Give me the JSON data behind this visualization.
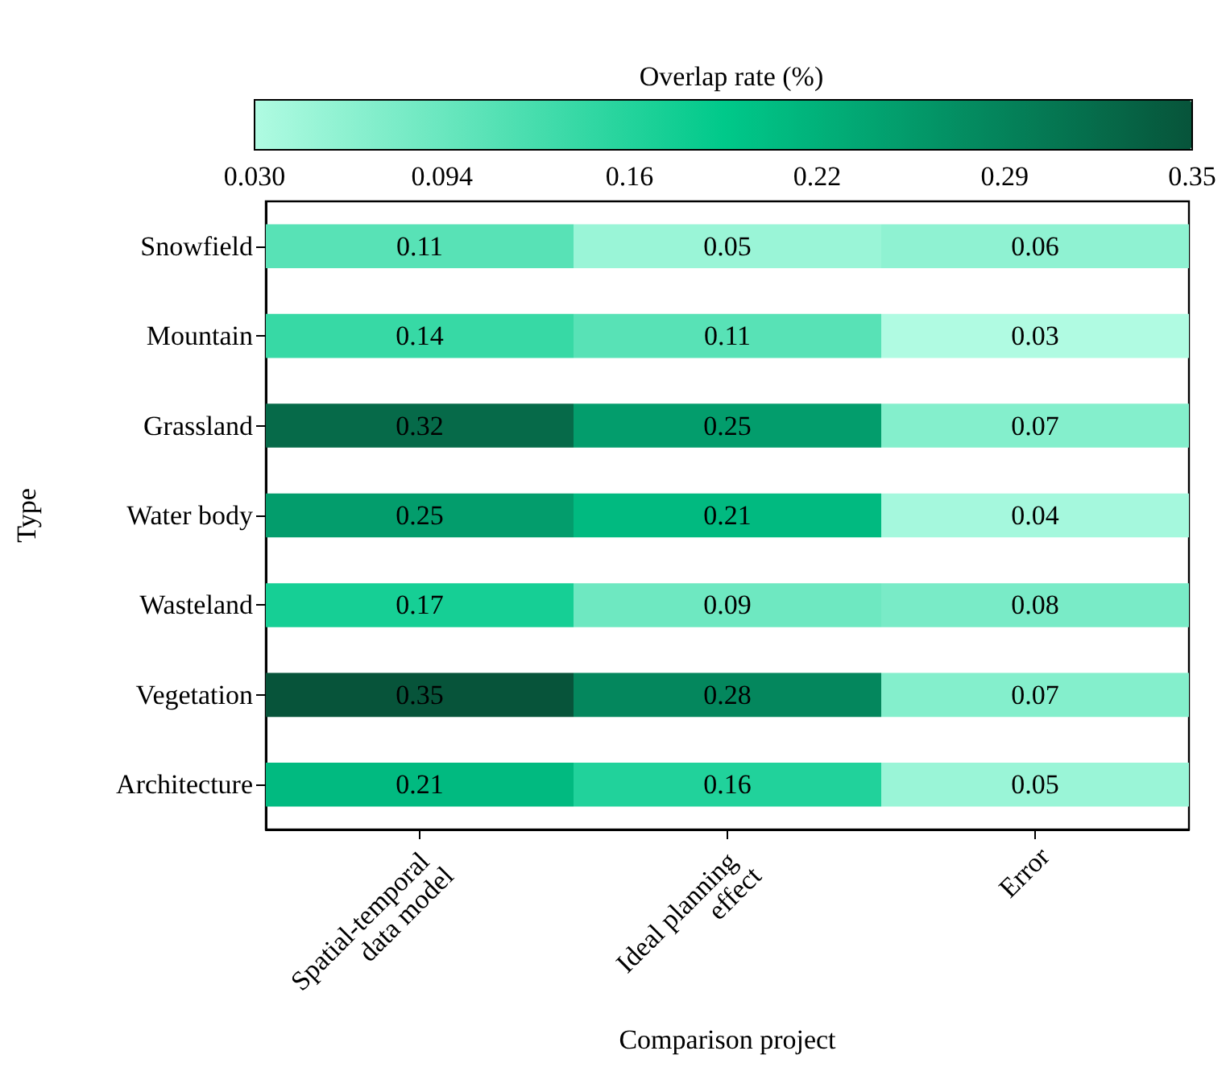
{
  "chart_data": {
    "type": "heatmap",
    "xlabel": "Comparison project",
    "ylabel": "Type",
    "clabel": "Overlap rate (%)",
    "categories": [
      "Spatial-temporal data model",
      "Ideal planning effect",
      "Error"
    ],
    "y_categories": [
      "Snowfield",
      "Mountain",
      "Grassland",
      "Water body",
      "Wasteland",
      "Vegetation",
      "Architecture"
    ],
    "cells": [
      [
        0.11,
        0.05,
        0.06
      ],
      [
        0.14,
        0.11,
        0.03
      ],
      [
        0.32,
        0.25,
        0.07
      ],
      [
        0.25,
        0.21,
        0.04
      ],
      [
        0.17,
        0.09,
        0.08
      ],
      [
        0.35,
        0.28,
        0.07
      ],
      [
        0.21,
        0.16,
        0.05
      ]
    ],
    "clim": [
      0.03,
      0.35
    ],
    "cticks": [
      {
        "value": 0.03,
        "label": "0.030"
      },
      {
        "value": 0.094,
        "label": "0.094"
      },
      {
        "value": 0.158,
        "label": "0.16"
      },
      {
        "value": 0.222,
        "label": "0.22"
      },
      {
        "value": 0.286,
        "label": "0.29"
      },
      {
        "value": 0.35,
        "label": "0.35"
      }
    ],
    "colors": [
      "#b0fbe2",
      "#00c98a",
      "#07543a"
    ],
    "data_labels": true
  }
}
